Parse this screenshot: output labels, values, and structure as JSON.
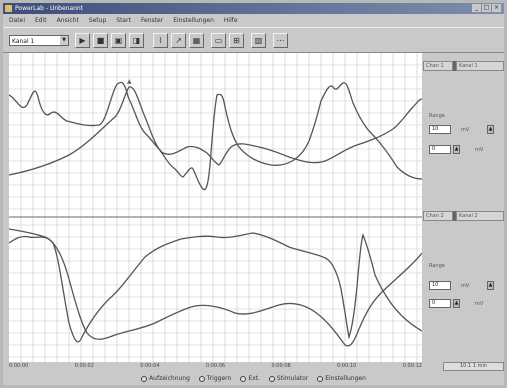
{
  "window": {
    "title": "PowerLab - Unbenannt",
    "buttons": [
      "_",
      "□",
      "×"
    ]
  },
  "menu": [
    "Datei",
    "Edit",
    "Ansicht",
    "Setup",
    "Start",
    "Fenster",
    "Einstellungen",
    "Hilfe"
  ],
  "toolbar": {
    "channel_select": "Kanal 1",
    "buttons": [
      "▶",
      "■",
      "▣",
      "◨",
      "⌇",
      "↗",
      "▦",
      "▭",
      "⊞",
      "▧",
      "⋯"
    ]
  },
  "right_panel": {
    "top_tabs": [
      "Chan 1",
      "Kanal 1"
    ],
    "top_controls": {
      "range_label": "Range",
      "range_value": "10",
      "unit_label": "mV",
      "offset_value": "0",
      "offset_unit": "mV"
    },
    "bottom_tabs": [
      "Chan 2",
      "Kanal 2"
    ],
    "bottom_controls": {
      "range_label": "Range",
      "range_value": "10",
      "unit_label": "mV",
      "offset_value": "0",
      "offset_unit": "mV"
    }
  },
  "bottom_scale": [
    "0:00:00",
    "0:00:02",
    "0:00:04",
    "0:00:06",
    "0:00:08",
    "0:00:10",
    "0:00:12"
  ],
  "status_box": "10:1  1 min",
  "footer": [
    "Aufzeichnung",
    "Triggern",
    "Ext.",
    "Stimulator",
    "Einstellungen"
  ]
}
